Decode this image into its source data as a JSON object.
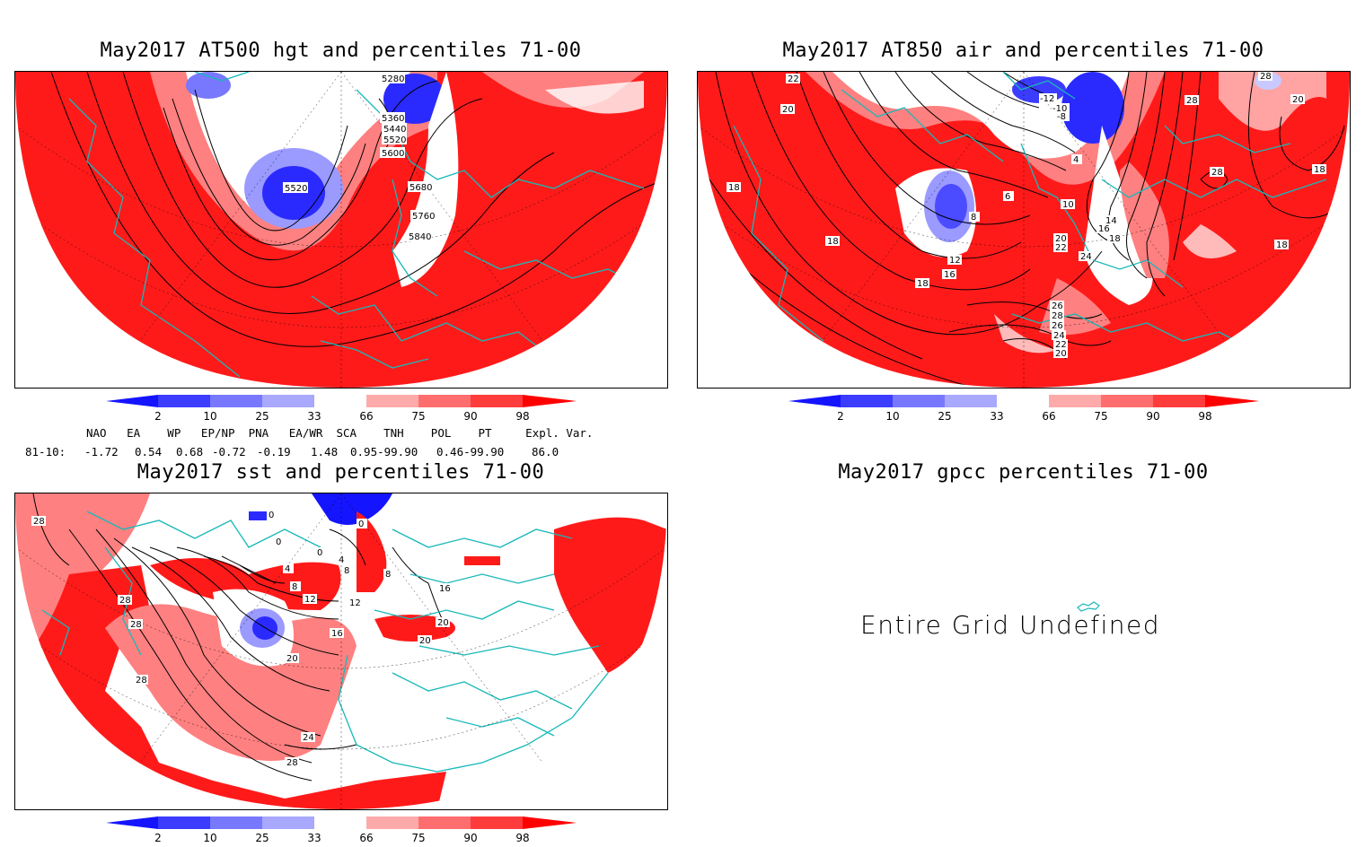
{
  "panels": {
    "p1": {
      "title": "May2017 AT500 hgt and percentiles 71-00",
      "contour_labels": [
        "5280",
        "5360",
        "5440",
        "5520",
        "5600",
        "5520",
        "5680",
        "5760",
        "5840"
      ]
    },
    "p2": {
      "title": "May2017 AT850 air and percentiles 71-00",
      "contour_labels": [
        "22",
        "20",
        "18",
        "18",
        "16",
        "18",
        "12",
        "8",
        "6",
        "10",
        "14",
        "16",
        "18",
        "20",
        "22",
        "24",
        "26",
        "28",
        "26",
        "24",
        "22",
        "20",
        "-12",
        "-10",
        "-8",
        "4",
        "28",
        "28",
        "18",
        "18",
        "20",
        "28"
      ]
    },
    "p3": {
      "title": "May2017 sst and percentiles 71-00",
      "contour_labels": [
        "28",
        "28",
        "28",
        "28",
        "0",
        "0",
        "0",
        "4",
        "4",
        "8",
        "8",
        "12",
        "12",
        "16",
        "16",
        "20",
        "20",
        "20",
        "24",
        "28",
        "0",
        "8"
      ]
    },
    "p4": {
      "title": "May2017 gpcc percentiles 71-00",
      "message": "Entire Grid Undefined"
    }
  },
  "colorbar": {
    "ticks": [
      "2",
      "10",
      "25",
      "33",
      "66",
      "75",
      "90",
      "98"
    ],
    "colors": [
      "#1414ff",
      "#3c3cff",
      "#7878ff",
      "#a8a8ff",
      "#ffffff",
      "#ffaaaa",
      "#ff6e6e",
      "#ff3c3c",
      "#ff0000"
    ]
  },
  "stats": {
    "header_line": "NAO   EA    WP   EP/NP  PNA   EA/WR  SCA    TNH    POL    PT     Expl. Var.",
    "row_label": "81-10:",
    "values": [
      "-1.72",
      "0.54",
      "0.68",
      "-0.72",
      "-0.19",
      "1.48",
      "0.95-99.90",
      "0.46-99.90",
      "86.0"
    ]
  },
  "colors": {
    "map_red": "#ff1a1a",
    "map_light_red": "#ff8080",
    "map_blue": "#2a2aff",
    "map_light_blue": "#9a9aff",
    "coast": "#18b8b8"
  }
}
